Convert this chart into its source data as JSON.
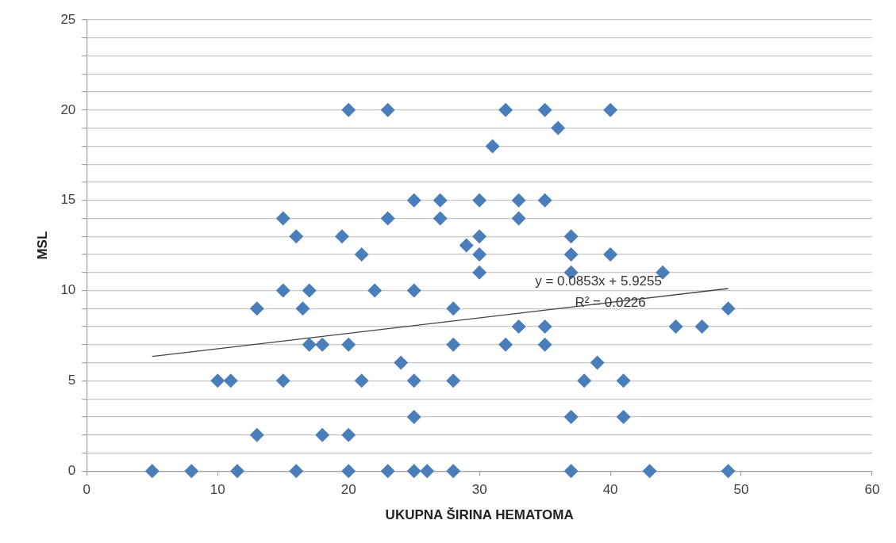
{
  "chart_data": {
    "type": "scatter",
    "xlabel": "UKUPNA ŠIRINA HEMATOMA",
    "ylabel": "MSL",
    "xlim": [
      0,
      60
    ],
    "xticks": [
      0,
      10,
      20,
      30,
      40,
      50,
      60
    ],
    "ylim": [
      0,
      25
    ],
    "yticks": [
      0,
      {
        "value": 1,
        "label": null
      },
      {
        "value": 2,
        "label": null
      },
      {
        "value": 3,
        "label": null
      },
      {
        "value": 4,
        "label": null
      },
      5,
      {
        "value": 6,
        "label": null
      },
      {
        "value": 7,
        "label": null
      },
      {
        "value": 8,
        "label": null
      },
      {
        "value": 9,
        "label": null
      },
      10,
      {
        "value": 11,
        "label": null
      },
      {
        "value": 12,
        "label": null
      },
      {
        "value": 13,
        "label": null
      },
      {
        "value": 14,
        "label": null
      },
      15,
      {
        "value": 16,
        "label": null
      },
      {
        "value": 17,
        "label": null
      },
      {
        "value": 18,
        "label": null
      },
      {
        "value": 19,
        "label": null
      },
      20,
      {
        "value": 21,
        "label": null
      },
      {
        "value": 22,
        "label": null
      },
      {
        "value": 23,
        "label": null
      },
      {
        "value": 24,
        "label": null
      },
      25
    ],
    "grid": "y",
    "marker": "diamond",
    "legend": false,
    "annotations": [
      "y = 0.0853x + 5.9255",
      "R² = 0.0226"
    ],
    "series": [
      {
        "color": "#4a7ebb",
        "x": [
          5,
          8,
          11.5,
          16,
          20,
          23,
          25,
          26,
          28,
          37,
          43,
          49,
          13,
          18,
          20,
          25,
          37,
          41,
          10,
          11,
          15,
          21,
          25,
          28,
          38,
          41,
          24,
          39,
          17,
          18,
          20,
          28,
          32,
          35,
          33,
          35,
          45,
          47,
          13,
          16.5,
          28,
          49,
          15,
          17,
          22,
          25,
          30,
          37,
          44,
          21,
          30,
          37,
          40,
          29,
          19.5,
          16,
          30,
          37,
          15,
          23,
          27,
          33,
          25,
          27,
          30,
          33,
          35,
          31,
          36,
          20,
          23,
          32,
          35,
          40
        ],
        "values": [
          0,
          0,
          0,
          0,
          0,
          0,
          0,
          0,
          0,
          0,
          0,
          0,
          2,
          2,
          2,
          3,
          3,
          3,
          5,
          5,
          5,
          5,
          5,
          5,
          5,
          5,
          6,
          6,
          7,
          7,
          7,
          7,
          7,
          7,
          8,
          8,
          8,
          8,
          9,
          9,
          9,
          9,
          10,
          10,
          10,
          10,
          11,
          11,
          11,
          12,
          12,
          12,
          12,
          12.5,
          13,
          13,
          13,
          13,
          14,
          14,
          14,
          14,
          15,
          15,
          15,
          15,
          15,
          18,
          19,
          20,
          20,
          20,
          20,
          20
        ]
      },
      {
        "type": "line",
        "color": "#404040",
        "x": [
          5,
          49
        ],
        "values": [
          6.35,
          10.11
        ],
        "marker": "none"
      }
    ]
  }
}
